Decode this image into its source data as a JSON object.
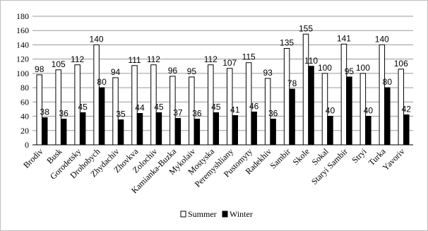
{
  "chart_data": {
    "type": "bar",
    "categories": [
      "Brodiv",
      "Busk",
      "Gorodetsky",
      "Drohobych",
      "Zhydachiv",
      "Zhovkva",
      "Zolochiv",
      "Kamianka-Buzka",
      "Mykolaiv",
      "Mostyska",
      "Peremyshliany",
      "Pustomyty",
      "Radekhiv",
      "Sambir",
      "Skole",
      "Sokal",
      "Staryi Sambir",
      "Stryi",
      "Turka",
      "Yavoriv"
    ],
    "series": [
      {
        "name": "Summer",
        "color": "#ffffff",
        "values": [
          98,
          105,
          112,
          140,
          94,
          111,
          112,
          96,
          95,
          112,
          107,
          115,
          93,
          135,
          155,
          100,
          141,
          100,
          140,
          106
        ]
      },
      {
        "name": "Winter",
        "color": "#000000",
        "values": [
          38,
          36,
          45,
          80,
          35,
          44,
          45,
          37,
          36,
          45,
          41,
          46,
          36,
          78,
          110,
          40,
          95,
          40,
          80,
          42
        ]
      }
    ],
    "ylim": [
      0,
      180
    ],
    "yticks": [
      "0",
      "20",
      "40",
      "60",
      "80",
      "100",
      "120",
      "140",
      "160",
      "180"
    ],
    "grid": true,
    "legend_position": "bottom-center"
  }
}
